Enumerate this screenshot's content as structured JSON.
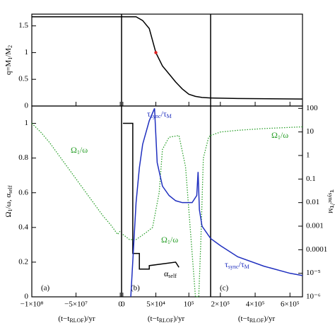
{
  "chart_data": {
    "type": "line",
    "top": {
      "ylabel": [
        "q=M",
        "1",
        "/M",
        "2"
      ],
      "ylim": [
        0,
        1.72
      ],
      "yticks": [
        0,
        0.5,
        1,
        1.5
      ]
    },
    "bottom": {
      "ylabel": [
        "Ω",
        "1",
        "/ω, α",
        "self"
      ],
      "y2label": [
        "τ",
        "sync",
        "/τ",
        "M"
      ],
      "ylim": [
        0,
        1.1
      ],
      "yticks": [
        0,
        0.2,
        0.4,
        0.6,
        0.8,
        1
      ],
      "y2lim": [
        1e-06,
        126
      ],
      "y2log": true,
      "y2ticks": [
        {
          "value": 1e-06,
          "label": "10⁻⁶"
        },
        {
          "value": 1e-05,
          "label": "10⁻⁵"
        },
        0.0001,
        0.001,
        0.01,
        0.1,
        1,
        10,
        100
      ]
    },
    "panels": [
      {
        "label": "(a)",
        "xlabel": [
          "(t−t",
          "RLOF",
          ")/yr"
        ],
        "xlim": [
          -100000000,
          1500000
        ],
        "xticks": [
          {
            "value": -100000000,
            "label": "−1×10⁸"
          },
          {
            "value": -50000000,
            "label": "−5×10⁷"
          },
          0
        ],
        "q": {
          "color": "#000000",
          "x": [
            -100000000,
            1500000
          ],
          "values": [
            1.67,
            1.67
          ]
        },
        "omega": {
          "color": "#2ca02c",
          "style": "dotted",
          "x": [
            -100000000,
            -90000000,
            -80000000,
            -70000000,
            -60000000,
            -50000000,
            -40000000,
            -30000000,
            -20000000,
            -10000000,
            -3000000,
            0
          ],
          "values": [
            1.0,
            0.95,
            0.89,
            0.82,
            0.75,
            0.68,
            0.61,
            0.54,
            0.47,
            0.41,
            0.36,
            0.38
          ]
        }
      },
      {
        "label": "(b)",
        "xlabel": [
          "(t−t",
          "RLOF",
          ")/yr"
        ],
        "xlim": [
          -2000,
          133000
        ],
        "xticks": [
          0,
          {
            "value": 50000,
            "label": "5×10⁴"
          },
          {
            "value": 100000,
            "label": "10⁵"
          }
        ],
        "q": {
          "color": "#000000",
          "x": [
            -2000,
            20000,
            30000,
            40000,
            50000,
            60000,
            70000,
            80000,
            90000,
            100000,
            110000,
            120000,
            133000
          ],
          "values": [
            1.67,
            1.67,
            1.6,
            1.45,
            1.0,
            0.75,
            0.6,
            0.45,
            0.32,
            0.22,
            0.18,
            0.16,
            0.15
          ]
        },
        "marker": {
          "color": "#e02020",
          "x": 50000,
          "value": 1.0
        },
        "omega": {
          "color": "#2ca02c",
          "style": "dotted",
          "x": [
            0,
            10000,
            20000,
            35000,
            45000,
            55000,
            60000,
            70000,
            85000,
            95000,
            100000,
            108000,
            110000,
            115000,
            118000,
            122000,
            130000,
            133000
          ],
          "values": [
            0.36,
            0.33,
            0.33,
            0.37,
            0.4,
            0.6,
            0.85,
            0.92,
            0.93,
            0.75,
            0.5,
            0.1,
            0.0,
            0.0,
            0.3,
            0.8,
            0.92,
            0.93
          ]
        },
        "alpha_self": {
          "color": "#000000",
          "x": [
            0,
            15000,
            15000,
            25000,
            25000,
            40000,
            40000,
            60000,
            80000,
            85000
          ],
          "values": [
            1.0,
            1.0,
            0.25,
            0.25,
            0.16,
            0.16,
            0.18,
            0.19,
            0.2,
            0.17
          ]
        },
        "tau": {
          "color": "#1f2fbf",
          "x": [
            12000,
            16000,
            20000,
            25000,
            30000,
            40000,
            48000,
            52000,
            60000,
            70000,
            80000,
            90000,
            105000,
            112000,
            114000,
            116000,
            120000,
            133000
          ],
          "values": [
            1e-06,
            0.0001,
            0.01,
            0.3,
            3,
            30,
            100,
            0.5,
            0.05,
            0.02,
            0.012,
            0.01,
            0.01,
            0.02,
            0.2,
            0.005,
            0.001,
            0.0003
          ]
        }
      },
      {
        "label": "(c)",
        "xlabel": [
          "(t−t",
          "RLOF",
          ")/yr"
        ],
        "xlim": [
          144000,
          672000
        ],
        "xticks": [
          {
            "value": 200000,
            "label": "2×10⁵"
          },
          {
            "value": 400000,
            "label": "4×10⁵"
          },
          {
            "value": 600000,
            "label": "6×10⁵"
          }
        ],
        "q": {
          "color": "#000000",
          "x": [
            144000,
            300000,
            672000
          ],
          "values": [
            0.15,
            0.14,
            0.13
          ]
        },
        "omega": {
          "color": "#2ca02c",
          "style": "dotted",
          "x": [
            144000,
            200000,
            300000,
            450000,
            672000
          ],
          "values": [
            0.93,
            0.95,
            0.96,
            0.97,
            0.98
          ]
        },
        "tau": {
          "color": "#1f2fbf",
          "x": [
            144000,
            200000,
            300000,
            450000,
            600000,
            672000
          ],
          "values": [
            0.0003,
            0.00015,
            5e-05,
            2e-05,
            1e-05,
            8e-06
          ]
        }
      }
    ],
    "annotations": [
      {
        "color": "#2ca02c",
        "parts": [
          "Ω",
          "1",
          "/ω"
        ]
      },
      {
        "color": "#1f2fbf",
        "parts": [
          "τ",
          "sync",
          "/τ",
          "M"
        ]
      },
      {
        "color": "#2ca02c",
        "parts": [
          "Ω",
          "1",
          "/ω"
        ]
      },
      {
        "color": "#2ca02c",
        "parts": [
          "Ω",
          "1",
          "/ω"
        ]
      },
      {
        "color": "#000000",
        "parts": [
          "α",
          "self"
        ]
      },
      {
        "color": "#1f2fbf",
        "parts": [
          "τ",
          "sync",
          "/τ",
          "M"
        ]
      }
    ]
  }
}
